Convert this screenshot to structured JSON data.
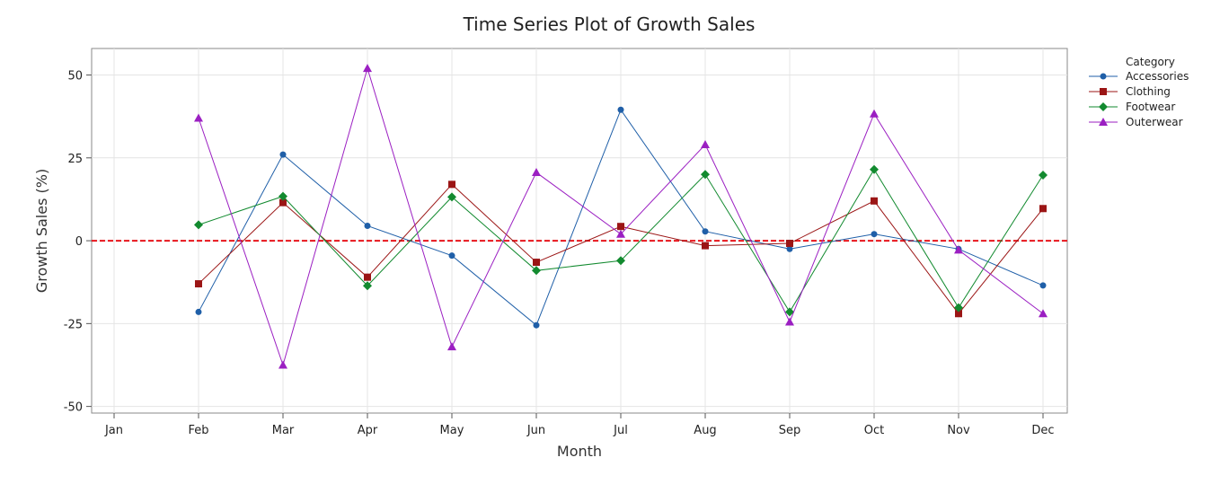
{
  "chart_data": {
    "type": "line",
    "title": "Time Series Plot of Growth Sales",
    "xlabel": "Month",
    "ylabel": "Growth Sales (%)",
    "categories": [
      "Jan",
      "Feb",
      "Mar",
      "Apr",
      "May",
      "Jun",
      "Jul",
      "Aug",
      "Sep",
      "Oct",
      "Nov",
      "Dec"
    ],
    "ylim": [
      -52,
      58
    ],
    "yticks": [
      -50,
      -25,
      0,
      25,
      50
    ],
    "grid": true,
    "reference_line": {
      "y": 0,
      "color": "#e8141b",
      "style": "dashed"
    },
    "legend": {
      "title": "Category",
      "placement": "right"
    },
    "series": [
      {
        "name": "Accessories",
        "color": "#1f5fa8",
        "marker": "circle",
        "values": [
          null,
          -21.5,
          26,
          4.5,
          -4.5,
          -25.5,
          39.5,
          2.8,
          -2.5,
          2,
          -2.5,
          -13.5
        ]
      },
      {
        "name": "Clothing",
        "color": "#9b1515",
        "marker": "square",
        "values": [
          null,
          -13,
          11.5,
          -11,
          17,
          -6.5,
          4.3,
          -1.5,
          -0.8,
          12,
          -22,
          9.7
        ]
      },
      {
        "name": "Footwear",
        "color": "#128a2f",
        "marker": "diamond",
        "values": [
          null,
          4.8,
          13.4,
          -13.6,
          13.2,
          -9,
          -6,
          20,
          -21.5,
          21.5,
          -20.2,
          19.8
        ]
      },
      {
        "name": "Outerwear",
        "color": "#9b1fc2",
        "marker": "triangle",
        "values": [
          null,
          37,
          -37.5,
          52,
          -32,
          20.6,
          2,
          29,
          -24.5,
          38.3,
          -2.8,
          -22
        ]
      }
    ]
  }
}
